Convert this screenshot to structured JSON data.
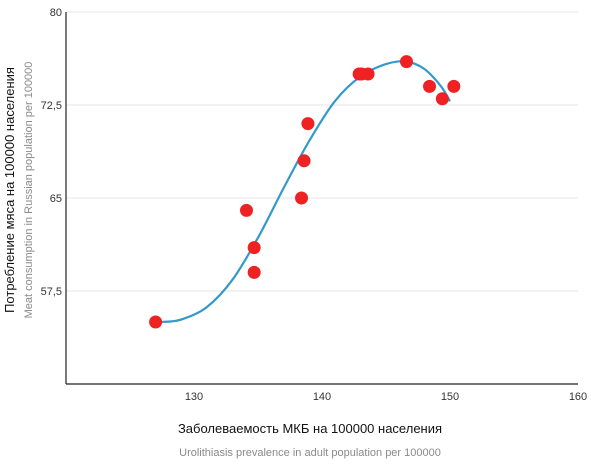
{
  "chart_data": {
    "type": "scatter",
    "title": "",
    "xlabel": "Заболеваемость МКБ на 100000 населения",
    "xlabel_secondary": "Urolithiasis prevalence in adult population per 100000",
    "ylabel": "Потребление мяса на 100000 населения",
    "ylabel_secondary": "Meat consumption in Russian population per 100000",
    "xlim": [
      120,
      160
    ],
    "ylim": [
      50,
      80
    ],
    "x_ticks": [
      "130",
      "140",
      "150",
      "160"
    ],
    "y_ticks": [
      "57,5",
      "65",
      "72,5",
      "80"
    ],
    "grid": "horizontal",
    "marker_color": "#ee2222",
    "curve_color": "#3399cc",
    "points": [
      {
        "x": 127,
        "y": 55
      },
      {
        "x": 134.1,
        "y": 64
      },
      {
        "x": 134.7,
        "y": 61
      },
      {
        "x": 134.7,
        "y": 59
      },
      {
        "x": 138.4,
        "y": 65
      },
      {
        "x": 138.6,
        "y": 68
      },
      {
        "x": 138.9,
        "y": 71
      },
      {
        "x": 142.9,
        "y": 75
      },
      {
        "x": 143.1,
        "y": 75
      },
      {
        "x": 143.6,
        "y": 75
      },
      {
        "x": 146.6,
        "y": 76
      },
      {
        "x": 148.4,
        "y": 74
      },
      {
        "x": 149.4,
        "y": 73
      },
      {
        "x": 150.3,
        "y": 74
      }
    ],
    "trend": [
      {
        "x": 127.5,
        "y": 55
      },
      {
        "x": 129,
        "y": 55.2
      },
      {
        "x": 131,
        "y": 56.2
      },
      {
        "x": 133,
        "y": 58.4
      },
      {
        "x": 135,
        "y": 61.8
      },
      {
        "x": 137,
        "y": 65.8
      },
      {
        "x": 139,
        "y": 69.6
      },
      {
        "x": 141,
        "y": 72.8
      },
      {
        "x": 143,
        "y": 74.8
      },
      {
        "x": 145,
        "y": 75.8
      },
      {
        "x": 146.6,
        "y": 76
      },
      {
        "x": 148,
        "y": 75.4
      },
      {
        "x": 149.3,
        "y": 74
      },
      {
        "x": 150,
        "y": 72.8
      }
    ]
  }
}
